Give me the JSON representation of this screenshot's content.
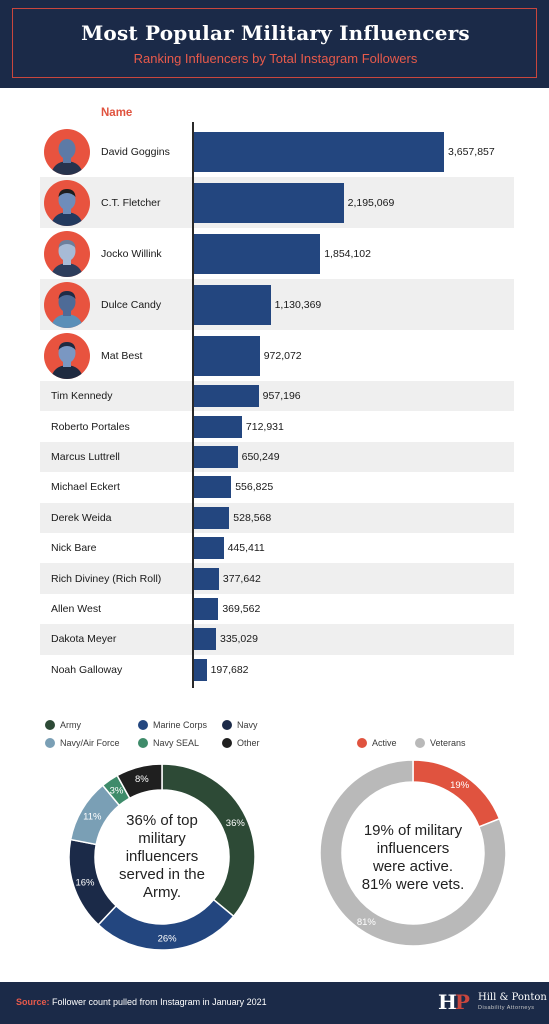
{
  "header": {
    "title": "Most Popular Military Influencers",
    "subtitle": "Ranking Influencers by Total Instagram Followers"
  },
  "colors": {
    "navy_bg": "#1b2a48",
    "accent_red": "#e0533f",
    "bar_blue": "#23467f"
  },
  "chart_data": [
    {
      "type": "bar",
      "orientation": "horizontal",
      "column_header": "Name",
      "categories": [
        "David Goggins",
        "C.T. Fletcher",
        "Jocko Willink",
        "Dulce Candy",
        "Mat Best",
        "Tim Kennedy",
        "Roberto Portales",
        "Marcus Luttrell",
        "Michael Eckert",
        "Derek Weida",
        "Nick Bare",
        "Rich Diviney (Rich Roll)",
        "Allen West",
        "Dakota Meyer",
        "Noah Galloway"
      ],
      "values": [
        3657857,
        2195069,
        1854102,
        1130369,
        972072,
        957196,
        712931,
        650249,
        556825,
        528568,
        445411,
        377642,
        369562,
        335029,
        197682
      ],
      "value_labels": [
        "3,657,857",
        "2,195,069",
        "1,854,102",
        "1,130,369",
        "972,072",
        "957,196",
        "712,931",
        "650,249",
        "556,825",
        "528,568",
        "445,411",
        "377,642",
        "369,562",
        "335,029",
        "197,682"
      ],
      "avatars": [
        "avatar-icon",
        "avatar-icon",
        "avatar-icon",
        "avatar-icon",
        "avatar-icon"
      ],
      "xlim": [
        0,
        3657857
      ]
    },
    {
      "type": "pie",
      "style": "donut",
      "categories": [
        "Army",
        "Marine Corps",
        "Navy",
        "Navy/Air Force",
        "Navy SEAL",
        "Other"
      ],
      "values": [
        36,
        26,
        16,
        11,
        3,
        8
      ],
      "slice_labels": [
        "36%",
        "26%",
        "16%",
        "11%",
        "3%",
        "8%"
      ],
      "colors": [
        "#2d4a36",
        "#23467f",
        "#1b2a48",
        "#7a9fb5",
        "#3e8b6a",
        "#1f1f1f"
      ],
      "legend_placement": "top",
      "center_text": [
        "36% of top",
        "military",
        "influencers",
        "served in the",
        "Army."
      ]
    },
    {
      "type": "pie",
      "style": "donut",
      "categories": [
        "Active",
        "Veterans"
      ],
      "values": [
        19,
        81
      ],
      "slice_labels": [
        "19%",
        "81%"
      ],
      "colors": [
        "#e0533f",
        "#b9b9b9"
      ],
      "legend_placement": "top",
      "center_text": [
        "19% of military",
        "influencers",
        "were active.",
        "81% were vets."
      ]
    }
  ],
  "footer": {
    "source_label": "Source:",
    "source_text": " Follower count pulled from Instagram in January 2021",
    "logo_mark_h": "H",
    "logo_mark_p": "P",
    "logo_name": "Hill & Ponton",
    "logo_tag": "Disability Attorneys"
  }
}
